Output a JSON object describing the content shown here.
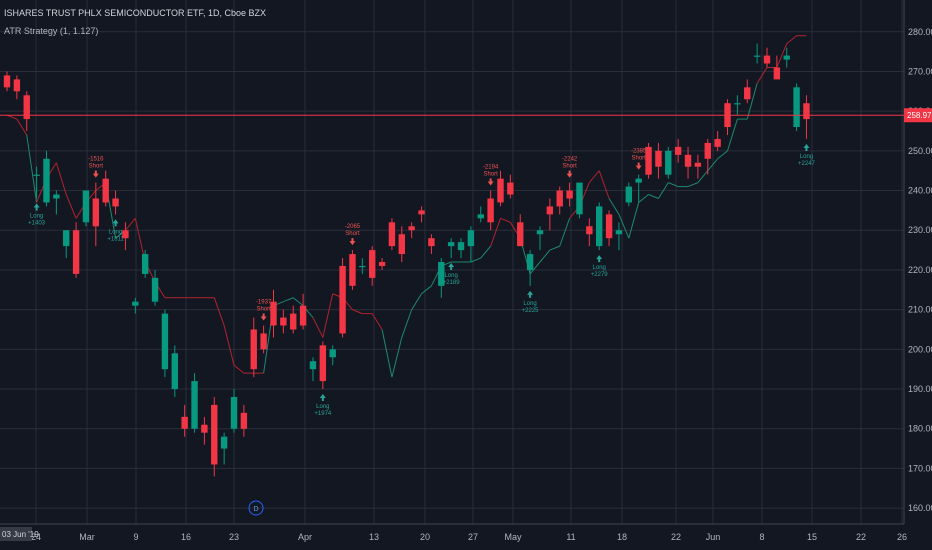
{
  "header": {
    "title": "ISHARES TRUST PHLX SEMICONDUCTOR ETF, 1D, Cboe BZX",
    "indicator": "ATR Strategy (1, 1.127)"
  },
  "footer": {
    "date_badge": "03 Jun '19",
    "d_marker": "D"
  },
  "colors": {
    "background": "#131722",
    "up": "#089981",
    "down": "#f23645",
    "stop_up": "#1e8a6e",
    "stop_down": "#b0242f",
    "price_line": "#f23645",
    "grid": "#2a2e39",
    "long_signal": "#26a69a",
    "short_signal": "#ef5350"
  },
  "chart_data": {
    "type": "candlestick",
    "title": "ISHARES TRUST PHLX SEMICONDUCTOR ETF, 1D, Cboe BZX",
    "ylim": [
      156,
      288
    ],
    "y_ticks": [
      "160.00",
      "170.00",
      "180.00",
      "190.00",
      "200.00",
      "210.00",
      "220.00",
      "230.00",
      "240.00",
      "250.00",
      "260.00",
      "270.00",
      "280.00"
    ],
    "x_ticks": [
      "24",
      "Mar",
      "9",
      "16",
      "23",
      "Apr",
      "13",
      "20",
      "27",
      "May",
      "11",
      "18",
      "22",
      "Jun",
      "8",
      "15",
      "22",
      "26"
    ],
    "last_price": "258.97",
    "last_price_value": 258.97,
    "candles": [
      {
        "o": 269,
        "h": 270,
        "l": 265,
        "c": 266
      },
      {
        "o": 268,
        "h": 269,
        "l": 263,
        "c": 265
      },
      {
        "o": 264,
        "h": 265,
        "l": 255,
        "c": 258
      },
      {
        "o": 244,
        "h": 246,
        "l": 238,
        "c": 244
      },
      {
        "o": 237,
        "h": 250,
        "l": 236,
        "c": 248
      },
      {
        "o": 238,
        "h": 240,
        "l": 234,
        "c": 239
      },
      {
        "o": 226,
        "h": 230,
        "l": 223,
        "c": 230
      },
      {
        "o": 230,
        "h": 232,
        "l": 218,
        "c": 219
      },
      {
        "o": 232,
        "h": 240,
        "l": 231,
        "c": 240
      },
      {
        "o": 238,
        "h": 242,
        "l": 226,
        "c": 231
      },
      {
        "o": 243,
        "h": 245,
        "l": 236,
        "c": 237
      },
      {
        "o": 238,
        "h": 240,
        "l": 234,
        "c": 236
      },
      {
        "o": 230,
        "h": 232,
        "l": 225,
        "c": 228
      },
      {
        "o": 211,
        "h": 213,
        "l": 209,
        "c": 212
      },
      {
        "o": 219,
        "h": 225,
        "l": 218,
        "c": 224
      },
      {
        "o": 212,
        "h": 220,
        "l": 211,
        "c": 218
      },
      {
        "o": 195,
        "h": 210,
        "l": 193,
        "c": 209
      },
      {
        "o": 190,
        "h": 201,
        "l": 188,
        "c": 199
      },
      {
        "o": 183,
        "h": 186,
        "l": 178,
        "c": 180
      },
      {
        "o": 180,
        "h": 194,
        "l": 179,
        "c": 192
      },
      {
        "o": 181,
        "h": 183,
        "l": 176,
        "c": 179
      },
      {
        "o": 186,
        "h": 188,
        "l": 168,
        "c": 171
      },
      {
        "o": 175,
        "h": 179,
        "l": 171,
        "c": 178
      },
      {
        "o": 180,
        "h": 190,
        "l": 179,
        "c": 188
      },
      {
        "o": 184,
        "h": 186,
        "l": 178,
        "c": 180
      },
      {
        "o": 205,
        "h": 208,
        "l": 193,
        "c": 195
      },
      {
        "o": 204,
        "h": 206,
        "l": 199,
        "c": 200
      },
      {
        "o": 212,
        "h": 215,
        "l": 203,
        "c": 206
      },
      {
        "o": 208,
        "h": 210,
        "l": 204,
        "c": 206
      },
      {
        "o": 209,
        "h": 211,
        "l": 204,
        "c": 205
      },
      {
        "o": 211,
        "h": 214,
        "l": 205,
        "c": 206
      },
      {
        "o": 195,
        "h": 198,
        "l": 192,
        "c": 197
      },
      {
        "o": 201,
        "h": 202,
        "l": 190,
        "c": 192
      },
      {
        "o": 198,
        "h": 201,
        "l": 196,
        "c": 200
      },
      {
        "o": 221,
        "h": 223,
        "l": 203,
        "c": 204
      },
      {
        "o": 224,
        "h": 225,
        "l": 215,
        "c": 216
      },
      {
        "o": 221,
        "h": 223,
        "l": 219,
        "c": 221
      },
      {
        "o": 225,
        "h": 226,
        "l": 216,
        "c": 218
      },
      {
        "o": 222,
        "h": 223,
        "l": 220,
        "c": 221
      },
      {
        "o": 232,
        "h": 233,
        "l": 225,
        "c": 226
      },
      {
        "o": 229,
        "h": 231,
        "l": 222,
        "c": 224
      },
      {
        "o": 231,
        "h": 232,
        "l": 228,
        "c": 230
      },
      {
        "o": 235,
        "h": 236,
        "l": 232,
        "c": 234
      },
      {
        "o": 228,
        "h": 229,
        "l": 224,
        "c": 226
      },
      {
        "o": 216,
        "h": 223,
        "l": 213,
        "c": 222
      },
      {
        "o": 226,
        "h": 228,
        "l": 223,
        "c": 227
      },
      {
        "o": 225,
        "h": 228,
        "l": 223,
        "c": 227
      },
      {
        "o": 226,
        "h": 231,
        "l": 222,
        "c": 230
      },
      {
        "o": 233,
        "h": 236,
        "l": 232,
        "c": 234
      },
      {
        "o": 238,
        "h": 240,
        "l": 230,
        "c": 232
      },
      {
        "o": 243,
        "h": 245,
        "l": 236,
        "c": 237
      },
      {
        "o": 242,
        "h": 244,
        "l": 238,
        "c": 239
      },
      {
        "o": 232,
        "h": 234,
        "l": 226,
        "c": 226
      },
      {
        "o": 220,
        "h": 225,
        "l": 216,
        "c": 224
      },
      {
        "o": 229,
        "h": 231,
        "l": 225,
        "c": 230
      },
      {
        "o": 236,
        "h": 238,
        "l": 230,
        "c": 234
      },
      {
        "o": 240,
        "h": 241,
        "l": 234,
        "c": 236
      },
      {
        "o": 240,
        "h": 242,
        "l": 236,
        "c": 238
      },
      {
        "o": 234,
        "h": 242,
        "l": 233,
        "c": 242
      },
      {
        "o": 231,
        "h": 233,
        "l": 226,
        "c": 229
      },
      {
        "o": 226,
        "h": 237,
        "l": 225,
        "c": 236
      },
      {
        "o": 234,
        "h": 235,
        "l": 226,
        "c": 228
      },
      {
        "o": 229,
        "h": 232,
        "l": 225,
        "c": 230
      },
      {
        "o": 237,
        "h": 242,
        "l": 236,
        "c": 241
      },
      {
        "o": 242,
        "h": 244,
        "l": 237,
        "c": 243
      },
      {
        "o": 251,
        "h": 252,
        "l": 243,
        "c": 244
      },
      {
        "o": 250,
        "h": 252,
        "l": 243,
        "c": 246
      },
      {
        "o": 244,
        "h": 251,
        "l": 243,
        "c": 250
      },
      {
        "o": 251,
        "h": 253,
        "l": 247,
        "c": 249
      },
      {
        "o": 249,
        "h": 251,
        "l": 243,
        "c": 246
      },
      {
        "o": 247,
        "h": 249,
        "l": 243,
        "c": 246
      },
      {
        "o": 252,
        "h": 253,
        "l": 244,
        "c": 248
      },
      {
        "o": 253,
        "h": 255,
        "l": 250,
        "c": 251
      },
      {
        "o": 262,
        "h": 263,
        "l": 254,
        "c": 256
      },
      {
        "o": 262,
        "h": 264,
        "l": 259,
        "c": 262
      },
      {
        "o": 266,
        "h": 268,
        "l": 262,
        "c": 263
      },
      {
        "o": 274,
        "h": 277,
        "l": 272,
        "c": 274
      },
      {
        "o": 274,
        "h": 276,
        "l": 271,
        "c": 272
      },
      {
        "o": 271,
        "h": 274,
        "l": 268,
        "c": 268
      },
      {
        "o": 273,
        "h": 276,
        "l": 271,
        "c": 274
      },
      {
        "o": 256,
        "h": 267,
        "l": 255,
        "c": 266
      },
      {
        "o": 262,
        "h": 264,
        "l": 253,
        "c": 258
      }
    ],
    "atr_stop": [
      {
        "v": 259,
        "t": "short"
      },
      {
        "v": 258,
        "t": "short"
      },
      {
        "v": 254,
        "t": "short"
      },
      {
        "v": 237,
        "t": "long"
      },
      {
        "v": 243,
        "t": "short"
      },
      {
        "v": 247,
        "t": "short"
      },
      {
        "v": 239,
        "t": "short"
      },
      {
        "v": 233,
        "t": "short"
      },
      {
        "v": 237,
        "t": "short"
      },
      {
        "v": 240,
        "t": "short"
      },
      {
        "v": 242,
        "t": "short"
      },
      {
        "v": 228,
        "t": "long"
      },
      {
        "v": 230,
        "t": "long"
      },
      {
        "v": 233,
        "t": "short"
      },
      {
        "v": 222,
        "t": "short"
      },
      {
        "v": 217,
        "t": "short"
      },
      {
        "v": 213,
        "t": "short"
      },
      {
        "v": 213,
        "t": "short"
      },
      {
        "v": 213,
        "t": "short"
      },
      {
        "v": 213,
        "t": "short"
      },
      {
        "v": 213,
        "t": "short"
      },
      {
        "v": 213,
        "t": "short"
      },
      {
        "v": 206,
        "t": "short"
      },
      {
        "v": 196,
        "t": "short"
      },
      {
        "v": 194,
        "t": "short"
      },
      {
        "v": 194,
        "t": "short"
      },
      {
        "v": 194,
        "t": "short"
      },
      {
        "v": 211,
        "t": "long"
      },
      {
        "v": 212,
        "t": "long"
      },
      {
        "v": 213,
        "t": "long"
      },
      {
        "v": 211,
        "t": "long"
      },
      {
        "v": 208,
        "t": "long"
      },
      {
        "v": 203,
        "t": "short"
      },
      {
        "v": 214,
        "t": "short"
      },
      {
        "v": 213,
        "t": "short"
      },
      {
        "v": 210,
        "t": "short"
      },
      {
        "v": 209,
        "t": "short"
      },
      {
        "v": 209,
        "t": "short"
      },
      {
        "v": 205,
        "t": "short"
      },
      {
        "v": 193,
        "t": "long"
      },
      {
        "v": 203,
        "t": "long"
      },
      {
        "v": 210,
        "t": "long"
      },
      {
        "v": 214,
        "t": "long"
      },
      {
        "v": 216,
        "t": "long"
      },
      {
        "v": 221,
        "t": "long"
      },
      {
        "v": 222,
        "t": "long"
      },
      {
        "v": 222,
        "t": "long"
      },
      {
        "v": 222,
        "t": "long"
      },
      {
        "v": 223,
        "t": "long"
      },
      {
        "v": 226,
        "t": "long"
      },
      {
        "v": 233,
        "t": "short"
      },
      {
        "v": 232,
        "t": "short"
      },
      {
        "v": 228,
        "t": "short"
      },
      {
        "v": 219,
        "t": "long"
      },
      {
        "v": 222,
        "t": "long"
      },
      {
        "v": 225,
        "t": "long"
      },
      {
        "v": 226,
        "t": "long"
      },
      {
        "v": 233,
        "t": "long"
      },
      {
        "v": 236,
        "t": "short"
      },
      {
        "v": 242,
        "t": "short"
      },
      {
        "v": 245,
        "t": "short"
      },
      {
        "v": 238,
        "t": "short"
      },
      {
        "v": 234,
        "t": "long"
      },
      {
        "v": 228,
        "t": "long"
      },
      {
        "v": 237,
        "t": "long"
      },
      {
        "v": 239,
        "t": "long"
      },
      {
        "v": 238,
        "t": "long"
      },
      {
        "v": 242,
        "t": "long"
      },
      {
        "v": 241,
        "t": "long"
      },
      {
        "v": 241,
        "t": "long"
      },
      {
        "v": 242,
        "t": "long"
      },
      {
        "v": 245,
        "t": "long"
      },
      {
        "v": 248,
        "t": "long"
      },
      {
        "v": 250,
        "t": "long"
      },
      {
        "v": 258,
        "t": "long"
      },
      {
        "v": 258,
        "t": "long"
      },
      {
        "v": 267,
        "t": "long"
      },
      {
        "v": 271,
        "t": "short"
      },
      {
        "v": 271,
        "t": "short"
      },
      {
        "v": 277,
        "t": "short"
      },
      {
        "v": 279,
        "t": "short"
      },
      {
        "v": 279,
        "t": "short"
      }
    ],
    "signals": [
      {
        "i": 3,
        "type": "long",
        "label": "Long",
        "value": "+1403"
      },
      {
        "i": 9,
        "type": "short",
        "label": "Short",
        "value": "-1516"
      },
      {
        "i": 11,
        "type": "long",
        "label": "Long",
        "value": "+1811"
      },
      {
        "i": 26,
        "type": "short",
        "label": "Short",
        "value": "-1937"
      },
      {
        "i": 32,
        "type": "long",
        "label": "Long",
        "value": "+1974"
      },
      {
        "i": 35,
        "type": "short",
        "label": "Short",
        "value": "-2065"
      },
      {
        "i": 45,
        "type": "long",
        "label": "Long",
        "value": "+2189"
      },
      {
        "i": 49,
        "type": "short",
        "label": "Short",
        "value": "-2194"
      },
      {
        "i": 53,
        "type": "long",
        "label": "Long",
        "value": "+2225"
      },
      {
        "i": 57,
        "type": "short",
        "label": "Short",
        "value": "-2242"
      },
      {
        "i": 60,
        "type": "long",
        "label": "Long",
        "value": "+2279"
      },
      {
        "i": 64,
        "type": "short",
        "label": "Short",
        "value": "-2385"
      },
      {
        "i": 81,
        "type": "long",
        "label": "Long",
        "value": "+2247"
      }
    ]
  }
}
